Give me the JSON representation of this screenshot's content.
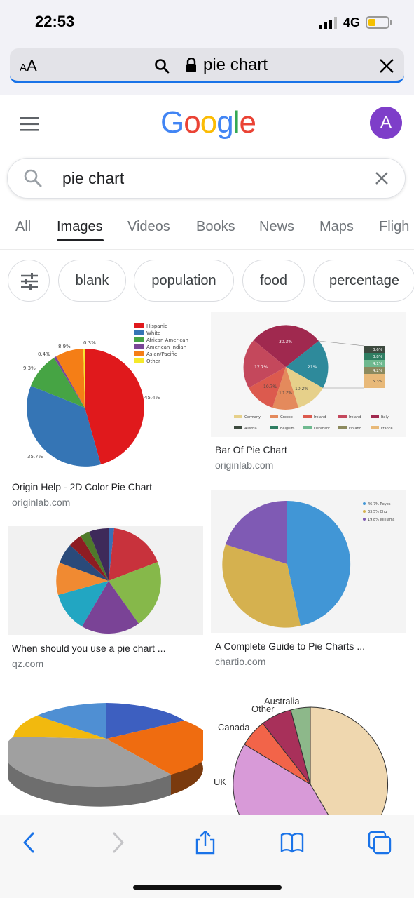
{
  "status": {
    "time": "22:53",
    "network": "4G"
  },
  "urlbar": {
    "aa_small": "A",
    "aa_big": "A",
    "text": "pie chart"
  },
  "header": {
    "logo_letters": [
      "G",
      "o",
      "o",
      "g",
      "l",
      "e"
    ],
    "logo_colors": [
      "#4285F4",
      "#EA4335",
      "#FBBC05",
      "#4285F4",
      "#34A853",
      "#EA4335"
    ],
    "avatar_letter": "A"
  },
  "search": {
    "query": "pie chart"
  },
  "tabs": [
    "All",
    "Images",
    "Videos",
    "Books",
    "News",
    "Maps",
    "Fligh"
  ],
  "active_tab": "Images",
  "chips": [
    "blank",
    "population",
    "food",
    "percentage"
  ],
  "results": [
    {
      "caption": "Origin Help - 2D Color Pie Chart",
      "source": "originlab.com",
      "legend": [
        "Hispanic",
        "White",
        "African American",
        "American Indian",
        "Asian/Pacific",
        "Other"
      ],
      "labels": [
        "45.4%",
        "35.7%",
        "9.3%",
        "0.4%",
        "8.9%",
        "0.3%"
      ]
    },
    {
      "caption": "Bar Of Pie Chart",
      "source": "originlab.com",
      "labels": [
        "30.3%",
        "17.7%",
        "21%",
        "10.7%",
        "10.2%",
        "10.2%"
      ],
      "bar_labels": [
        "3.6%",
        "3.8%",
        "4.1%",
        "4.2%",
        "5.3%"
      ],
      "legend": [
        "Germany",
        "Greece",
        "Ireland",
        "Ireland",
        "Italy",
        "Austria",
        "Belgium",
        "Denmark",
        "Finland",
        "France"
      ]
    },
    {
      "caption": "When should you use a pie chart ...",
      "source": "qz.com"
    },
    {
      "caption": "A Complete Guide to Pie Charts ...",
      "source": "chartio.com",
      "legend": [
        "46.7% Reyes",
        "33.5% Chu",
        "19.8% Williams"
      ]
    },
    {
      "caption": "",
      "source": ""
    },
    {
      "caption": "",
      "source": "",
      "labels": [
        "Australia",
        "Other",
        "Canada",
        "UK"
      ]
    }
  ]
}
